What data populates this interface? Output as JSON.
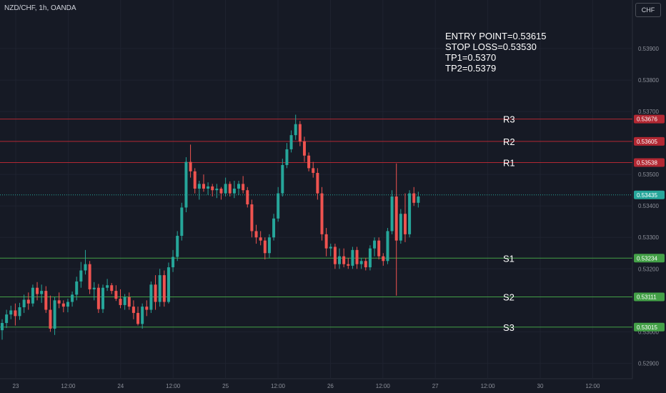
{
  "header": {
    "symbol_title": "NZD/CHF, 1h, OANDA",
    "currency_button": "CHF"
  },
  "annotation": {
    "lines": [
      "ENTRY POINT=0.53615",
      "STOP LOSS=0.53530",
      "TP1=0.5370",
      "TP2=0.5379"
    ]
  },
  "colors": {
    "background": "#161a25",
    "up": "#26a69a",
    "down": "#ef5350",
    "resistance": "#b22833",
    "support": "#43a047"
  },
  "chart_data": {
    "type": "candlestick",
    "title": "NZD/CHF, 1h, OANDA",
    "y_ticks": [
      "0.53900",
      "0.53800",
      "0.53700",
      "0.53500",
      "0.53400",
      "0.53300",
      "0.53200",
      "0.53000",
      "0.52900"
    ],
    "x_ticks": [
      "23",
      "12:00",
      "24",
      "12:00",
      "25",
      "12:00",
      "26",
      "12:00",
      "27",
      "12:00",
      "30",
      "12:00"
    ],
    "ylim": [
      0.52885,
      0.53975
    ],
    "current_price": {
      "label": "0.53435",
      "value": 0.53435
    },
    "levels": [
      {
        "name": "R3",
        "value": 0.53676,
        "label": "0.53676",
        "kind": "resistance"
      },
      {
        "name": "R2",
        "value": 0.53605,
        "label": "0.53605",
        "kind": "resistance"
      },
      {
        "name": "R1",
        "value": 0.53538,
        "label": "0.53538",
        "kind": "resistance"
      },
      {
        "name": "S1",
        "value": 0.53234,
        "label": "0.53234",
        "kind": "support"
      },
      {
        "name": "S2",
        "value": 0.53111,
        "label": "0.53111",
        "kind": "support"
      },
      {
        "name": "S3",
        "value": 0.53015,
        "label": "0.53015",
        "kind": "support"
      }
    ],
    "candles": [
      [
        0.53005,
        0.5304,
        0.52975,
        0.53028
      ],
      [
        0.53028,
        0.5307,
        0.53012,
        0.53055
      ],
      [
        0.53055,
        0.53083,
        0.5304,
        0.53068
      ],
      [
        0.53068,
        0.5309,
        0.5302,
        0.5305
      ],
      [
        0.5305,
        0.53092,
        0.53038,
        0.53078
      ],
      [
        0.53078,
        0.53118,
        0.5306,
        0.53102
      ],
      [
        0.53102,
        0.53125,
        0.5307,
        0.5309
      ],
      [
        0.5309,
        0.5315,
        0.5308,
        0.5314
      ],
      [
        0.5314,
        0.53158,
        0.531,
        0.5312
      ],
      [
        0.5312,
        0.5315,
        0.53092,
        0.5313
      ],
      [
        0.5313,
        0.53145,
        0.5306,
        0.5307
      ],
      [
        0.5307,
        0.53115,
        0.53,
        0.5301
      ],
      [
        0.5301,
        0.5311,
        0.5299,
        0.531
      ],
      [
        0.531,
        0.53125,
        0.53075,
        0.5309
      ],
      [
        0.5309,
        0.531,
        0.53062,
        0.5308
      ],
      [
        0.5308,
        0.53105,
        0.53062,
        0.53095
      ],
      [
        0.53095,
        0.53128,
        0.5308,
        0.53118
      ],
      [
        0.53118,
        0.53175,
        0.531,
        0.5316
      ],
      [
        0.5316,
        0.53222,
        0.5314,
        0.53195
      ],
      [
        0.53195,
        0.5326,
        0.53182,
        0.53215
      ],
      [
        0.53215,
        0.53225,
        0.5312,
        0.53135
      ],
      [
        0.53135,
        0.53158,
        0.531,
        0.5314
      ],
      [
        0.5314,
        0.53152,
        0.5306,
        0.53072
      ],
      [
        0.53072,
        0.5315,
        0.5306,
        0.5314
      ],
      [
        0.5314,
        0.53168,
        0.5313,
        0.53148
      ],
      [
        0.53148,
        0.53155,
        0.5312,
        0.5313
      ],
      [
        0.5313,
        0.53148,
        0.53098,
        0.53105
      ],
      [
        0.53105,
        0.53135,
        0.53075,
        0.53085
      ],
      [
        0.53085,
        0.5312,
        0.5307,
        0.5311
      ],
      [
        0.5311,
        0.53125,
        0.5307,
        0.5308
      ],
      [
        0.5308,
        0.531,
        0.5304,
        0.5306
      ],
      [
        0.5306,
        0.5308,
        0.5302,
        0.53025
      ],
      [
        0.53025,
        0.5309,
        0.5301,
        0.5308
      ],
      [
        0.5308,
        0.531,
        0.5305,
        0.5307
      ],
      [
        0.5307,
        0.5316,
        0.5306,
        0.5315
      ],
      [
        0.5315,
        0.5318,
        0.5307,
        0.53095
      ],
      [
        0.53095,
        0.532,
        0.5308,
        0.5318
      ],
      [
        0.5318,
        0.53195,
        0.5308,
        0.53095
      ],
      [
        0.53095,
        0.5322,
        0.5309,
        0.53205
      ],
      [
        0.53205,
        0.5326,
        0.5319,
        0.53238
      ],
      [
        0.53238,
        0.5332,
        0.53225,
        0.53305
      ],
      [
        0.53305,
        0.5341,
        0.5329,
        0.53395
      ],
      [
        0.53395,
        0.53555,
        0.5338,
        0.5354
      ],
      [
        0.5354,
        0.53595,
        0.5349,
        0.5351
      ],
      [
        0.5351,
        0.5352,
        0.5344,
        0.53455
      ],
      [
        0.53455,
        0.5348,
        0.5342,
        0.5347
      ],
      [
        0.5347,
        0.535,
        0.53445,
        0.53455
      ],
      [
        0.53455,
        0.53475,
        0.53435,
        0.53462
      ],
      [
        0.53462,
        0.5347,
        0.5343,
        0.5345
      ],
      [
        0.5345,
        0.5347,
        0.53425,
        0.53455
      ],
      [
        0.53455,
        0.5346,
        0.5342,
        0.5344
      ],
      [
        0.5344,
        0.5349,
        0.5343,
        0.5347
      ],
      [
        0.5347,
        0.53478,
        0.5343,
        0.5344
      ],
      [
        0.5344,
        0.5348,
        0.53425,
        0.53455
      ],
      [
        0.53455,
        0.5348,
        0.53435,
        0.5347
      ],
      [
        0.5347,
        0.53495,
        0.5344,
        0.5345
      ],
      [
        0.5345,
        0.5346,
        0.53395,
        0.53405
      ],
      [
        0.53405,
        0.5342,
        0.533,
        0.5332
      ],
      [
        0.5332,
        0.5334,
        0.5328,
        0.533
      ],
      [
        0.533,
        0.5332,
        0.53275,
        0.5329
      ],
      [
        0.5329,
        0.533,
        0.5323,
        0.5325
      ],
      [
        0.5325,
        0.5331,
        0.53235,
        0.533
      ],
      [
        0.533,
        0.53375,
        0.5329,
        0.5336
      ],
      [
        0.5336,
        0.5346,
        0.5335,
        0.5344
      ],
      [
        0.5344,
        0.5355,
        0.5343,
        0.5353
      ],
      [
        0.5353,
        0.536,
        0.5352,
        0.5358
      ],
      [
        0.5358,
        0.5364,
        0.5357,
        0.53625
      ],
      [
        0.53625,
        0.5369,
        0.5361,
        0.5366
      ],
      [
        0.5366,
        0.5367,
        0.5359,
        0.53605
      ],
      [
        0.53605,
        0.5362,
        0.5354,
        0.5356
      ],
      [
        0.5356,
        0.5357,
        0.5351,
        0.5352
      ],
      [
        0.5352,
        0.5354,
        0.5349,
        0.53505
      ],
      [
        0.53505,
        0.5352,
        0.5342,
        0.5344
      ],
      [
        0.5344,
        0.5346,
        0.5329,
        0.5331
      ],
      [
        0.5331,
        0.5333,
        0.5324,
        0.53265
      ],
      [
        0.53265,
        0.5328,
        0.5324,
        0.5327
      ],
      [
        0.5327,
        0.5328,
        0.532,
        0.53215
      ],
      [
        0.53215,
        0.53265,
        0.532,
        0.5324
      ],
      [
        0.5324,
        0.53265,
        0.53205,
        0.53215
      ],
      [
        0.53215,
        0.53235,
        0.532,
        0.5321
      ],
      [
        0.5321,
        0.5327,
        0.532,
        0.5326
      ],
      [
        0.5326,
        0.5327,
        0.532,
        0.53215
      ],
      [
        0.53215,
        0.53235,
        0.532,
        0.53225
      ],
      [
        0.53225,
        0.53235,
        0.53195,
        0.53205
      ],
      [
        0.53205,
        0.53275,
        0.53195,
        0.53265
      ],
      [
        0.53265,
        0.533,
        0.5324,
        0.5329
      ],
      [
        0.5329,
        0.533,
        0.5323,
        0.5324
      ],
      [
        0.5324,
        0.5325,
        0.5321,
        0.53225
      ],
      [
        0.53225,
        0.5333,
        0.53215,
        0.5332
      ],
      [
        0.5332,
        0.5345,
        0.5331,
        0.5343
      ],
      [
        0.5343,
        0.53535,
        0.53115,
        0.5329
      ],
      [
        0.5329,
        0.5339,
        0.5328,
        0.53375
      ],
      [
        0.53375,
        0.5344,
        0.53285,
        0.5331
      ],
      [
        0.5331,
        0.5345,
        0.533,
        0.5344
      ],
      [
        0.5344,
        0.5346,
        0.534,
        0.5341
      ],
      [
        0.5341,
        0.53445,
        0.53395,
        0.5343
      ]
    ]
  }
}
